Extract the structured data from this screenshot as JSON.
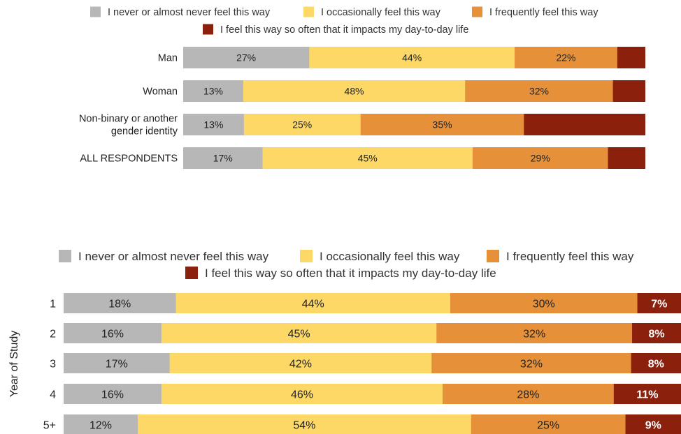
{
  "colors": {
    "never": "#b7b7b7",
    "occasionally": "#fdd866",
    "frequently": "#e6913a",
    "impacts": "#8b200d"
  },
  "chart_data": [
    {
      "type": "bar",
      "orientation": "horizontal",
      "stacked": true,
      "title": "",
      "xlabel": "",
      "ylabel": "",
      "legend_position": "top",
      "categories": [
        "Man",
        "Woman",
        "Non-binary or another gender identity",
        "ALL RESPONDENTS"
      ],
      "category_lines": [
        [
          "Man"
        ],
        [
          "Woman"
        ],
        [
          "Non-binary or another",
          "gender identity"
        ],
        [
          "ALL RESPONDENTS"
        ]
      ],
      "series": [
        {
          "name": "I never or almost never feel this way",
          "key": "never",
          "values": [
            27,
            13,
            13,
            17
          ]
        },
        {
          "name": "I occasionally feel this way",
          "key": "occasionally",
          "values": [
            44,
            48,
            25,
            45
          ]
        },
        {
          "name": "I frequently feel this way",
          "key": "frequently",
          "values": [
            22,
            32,
            35,
            29
          ]
        },
        {
          "name": "I feel this way so often that it impacts my day-to-day life",
          "key": "impacts",
          "values": [
            6,
            7,
            26,
            8
          ]
        }
      ],
      "value_format": "{v}%"
    },
    {
      "type": "bar",
      "orientation": "horizontal",
      "stacked": true,
      "title": "",
      "xlabel": "",
      "ylabel": "Year of Study",
      "legend_position": "top",
      "categories": [
        "1",
        "2",
        "3",
        "4",
        "5+"
      ],
      "category_lines": [
        [
          "1"
        ],
        [
          "2"
        ],
        [
          "3"
        ],
        [
          "4"
        ],
        [
          "5+"
        ]
      ],
      "series": [
        {
          "name": "I never or almost never feel this way",
          "key": "never",
          "values": [
            18,
            16,
            17,
            16,
            12
          ]
        },
        {
          "name": "I occasionally feel this way",
          "key": "occasionally",
          "values": [
            44,
            45,
            42,
            46,
            54
          ]
        },
        {
          "name": "I frequently feel this way",
          "key": "frequently",
          "values": [
            30,
            32,
            32,
            28,
            25
          ]
        },
        {
          "name": "I feel this way so often that it impacts my day-to-day life",
          "key": "impacts",
          "values": [
            7,
            8,
            8,
            11,
            9
          ]
        }
      ],
      "value_format": "{v}%"
    }
  ]
}
